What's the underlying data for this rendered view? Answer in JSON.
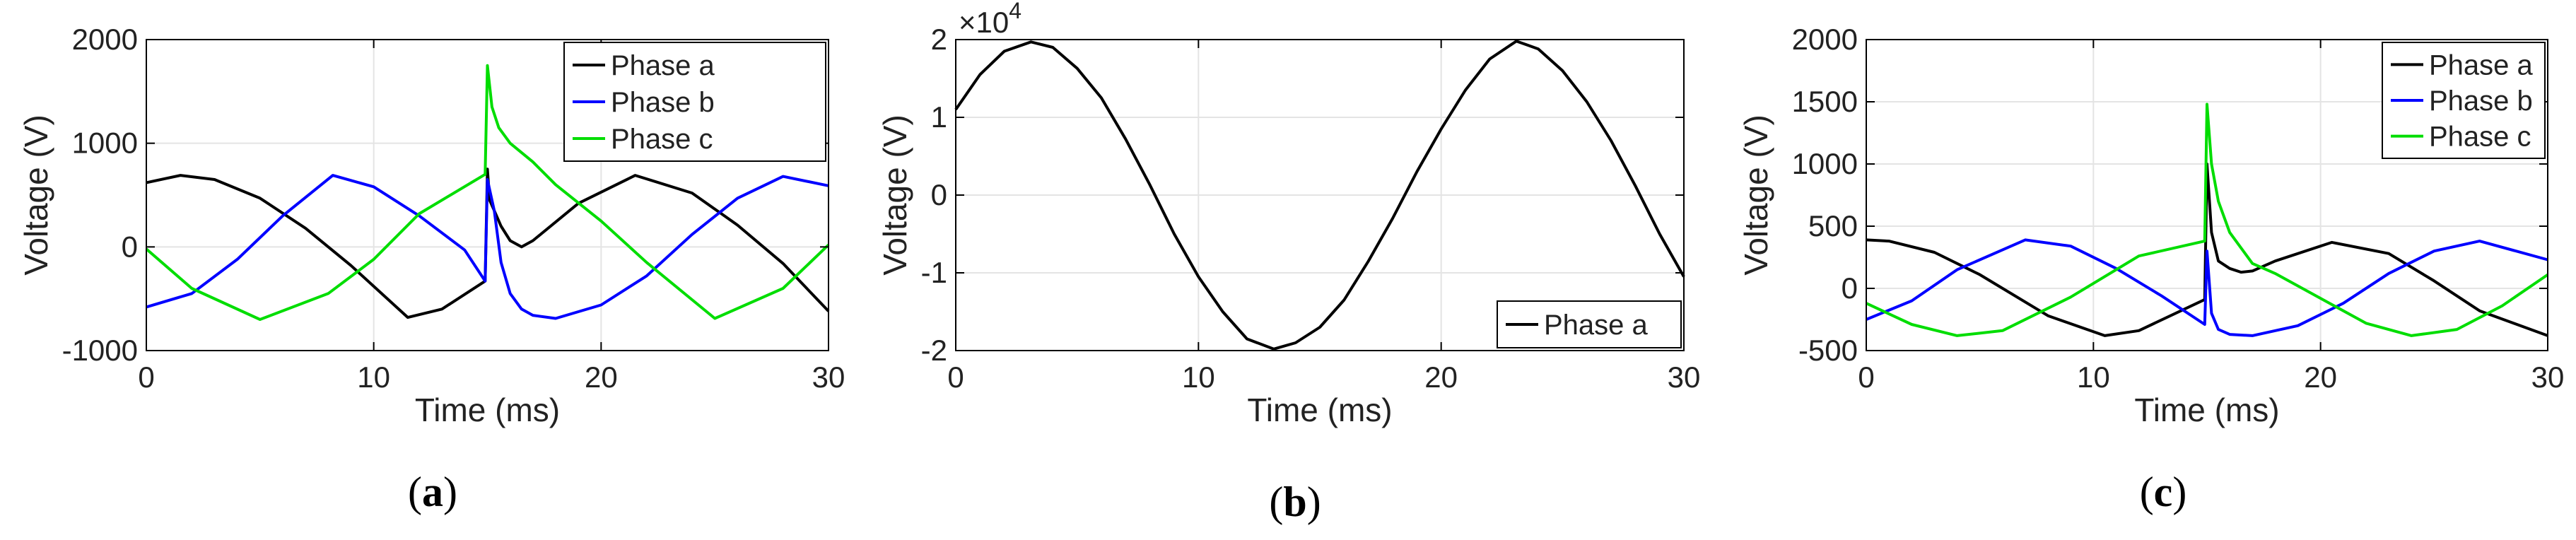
{
  "chart_data": [
    {
      "type": "line",
      "panel_label": "(a)",
      "xlabel": "Time (ms)",
      "ylabel": "Voltage (V)",
      "xlim": [
        0,
        30
      ],
      "ylim": [
        -1000,
        2000
      ],
      "xticks": [
        0,
        10,
        20,
        30
      ],
      "yticks": [
        -1000,
        0,
        1000,
        2000
      ],
      "ytick_labels": [
        "-1000",
        "0",
        "1000",
        "2000"
      ],
      "exponent_label": "",
      "grid": true,
      "legend_position": "top-right",
      "series": [
        {
          "name": "Phase a",
          "color": "#000000",
          "x": [
            0,
            1.5,
            3,
            5,
            7,
            9,
            11.5,
            13,
            14.9,
            15,
            15.1,
            15.3,
            15.6,
            16,
            16.5,
            17,
            19,
            21.5,
            24,
            26,
            28,
            30
          ],
          "y": [
            620,
            690,
            650,
            470,
            180,
            -180,
            -680,
            -600,
            -330,
            750,
            450,
            350,
            200,
            60,
            0,
            60,
            420,
            690,
            520,
            210,
            -160,
            -620
          ]
        },
        {
          "name": "Phase b",
          "color": "#0000ff",
          "x": [
            0,
            2,
            4,
            6,
            8.2,
            10,
            12,
            14,
            14.9,
            15,
            15.3,
            15.6,
            16,
            16.5,
            17,
            18,
            20,
            22,
            24,
            26,
            28,
            30
          ],
          "y": [
            -580,
            -450,
            -120,
            300,
            690,
            580,
            300,
            -30,
            -330,
            650,
            350,
            -150,
            -450,
            -600,
            -660,
            -690,
            -560,
            -280,
            120,
            470,
            680,
            590
          ]
        },
        {
          "name": "Phase c",
          "color": "#00dd00",
          "x": [
            0,
            2,
            5,
            8,
            10,
            12,
            14.9,
            15,
            15.2,
            15.5,
            16,
            17,
            18,
            20,
            22,
            25,
            28,
            30
          ],
          "y": [
            -20,
            -400,
            -700,
            -450,
            -120,
            320,
            700,
            1750,
            1350,
            1150,
            1000,
            820,
            600,
            250,
            -150,
            -690,
            -400,
            20
          ]
        }
      ]
    },
    {
      "type": "line",
      "panel_label": "(b)",
      "xlabel": "Time (ms)",
      "ylabel": "Voltage (V)",
      "xlim": [
        0,
        30
      ],
      "ylim": [
        -2,
        2
      ],
      "xticks": [
        0,
        10,
        20,
        30
      ],
      "yticks": [
        -2,
        -1,
        0,
        1,
        2
      ],
      "ytick_labels": [
        "-2",
        "-1",
        "0",
        "1",
        "2"
      ],
      "exponent_label": "×10",
      "exponent_power": "4",
      "grid": true,
      "legend_position": "bottom-right",
      "series": [
        {
          "name": "Phase a",
          "color": "#000000",
          "x": [
            0,
            1,
            2,
            3.1,
            4,
            5,
            6,
            7,
            8,
            9,
            10,
            11,
            12,
            13.1,
            14,
            15,
            16,
            17,
            18,
            19,
            20,
            21,
            22,
            23.1,
            24,
            25,
            26,
            27,
            28,
            29,
            30
          ],
          "y": [
            1.1,
            1.55,
            1.85,
            1.97,
            1.9,
            1.63,
            1.25,
            0.72,
            0.13,
            -0.5,
            -1.05,
            -1.5,
            -1.85,
            -1.98,
            -1.9,
            -1.7,
            -1.35,
            -0.85,
            -0.3,
            0.3,
            0.85,
            1.35,
            1.75,
            1.98,
            1.88,
            1.6,
            1.2,
            0.7,
            0.12,
            -0.5,
            -1.05
          ]
        }
      ]
    },
    {
      "type": "line",
      "panel_label": "(c)",
      "xlabel": "Time (ms)",
      "ylabel": "Voltage (V)",
      "xlim": [
        0,
        30
      ],
      "ylim": [
        -500,
        2000
      ],
      "xticks": [
        0,
        10,
        20,
        30
      ],
      "yticks": [
        -500,
        0,
        500,
        1000,
        1500,
        2000
      ],
      "ytick_labels": [
        "-500",
        "0",
        "500",
        "1000",
        "1500",
        "2000"
      ],
      "exponent_label": "",
      "grid": true,
      "legend_position": "top-right",
      "series": [
        {
          "name": "Phase a",
          "color": "#000000",
          "x": [
            0,
            1,
            3,
            5,
            8,
            10.5,
            12,
            14.9,
            15,
            15.2,
            15.5,
            16,
            16.5,
            17,
            18,
            20.5,
            23,
            25,
            27,
            30
          ],
          "y": [
            390,
            380,
            290,
            110,
            -220,
            -380,
            -340,
            -90,
            1000,
            450,
            220,
            160,
            130,
            140,
            220,
            370,
            280,
            60,
            -180,
            -380
          ]
        },
        {
          "name": "Phase b",
          "color": "#0000ff",
          "x": [
            0,
            2,
            4,
            7,
            9,
            11,
            13,
            14.9,
            15,
            15.2,
            15.5,
            16,
            17,
            19,
            21,
            23,
            25,
            27,
            30
          ],
          "y": [
            -250,
            -100,
            150,
            390,
            340,
            160,
            -60,
            -290,
            300,
            -200,
            -330,
            -370,
            -380,
            -300,
            -120,
            120,
            300,
            380,
            230
          ]
        },
        {
          "name": "Phase c",
          "color": "#00dd00",
          "x": [
            0,
            2,
            4,
            6,
            9,
            12,
            14.9,
            15,
            15.2,
            15.5,
            16,
            17,
            18,
            20,
            22,
            24,
            26,
            28,
            30
          ],
          "y": [
            -120,
            -290,
            -380,
            -340,
            -70,
            260,
            380,
            1480,
            1000,
            700,
            450,
            200,
            120,
            -80,
            -280,
            -380,
            -330,
            -140,
            110
          ]
        }
      ]
    }
  ]
}
